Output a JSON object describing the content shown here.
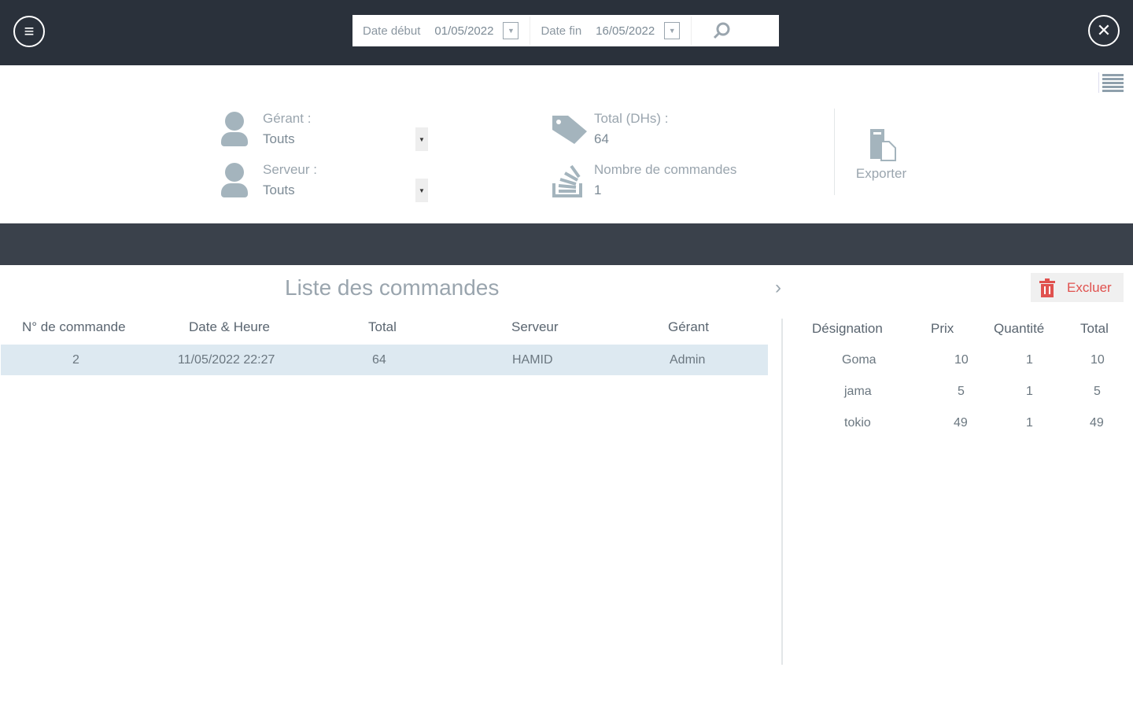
{
  "header": {
    "date_start_label": "Date début",
    "date_start": "01/05/2022",
    "date_end_label": "Date fin",
    "date_end": "16/05/2022"
  },
  "filters": {
    "gerant_label": "Gérant :",
    "gerant_value": "Touts",
    "serveur_label": "Serveur :",
    "serveur_value": "Touts"
  },
  "stats": {
    "total_label": "Total (DHs) :",
    "total_value": "64",
    "count_label": "Nombre de commandes",
    "count_value": "1"
  },
  "export_label": "Exporter",
  "orders": {
    "title": "Liste des commandes",
    "columns": [
      "N° de commande",
      "Date & Heure",
      "Total",
      "Serveur",
      "Gérant"
    ],
    "rows": [
      [
        "2",
        "11/05/2022 22:27",
        "64",
        "HAMID",
        "Admin"
      ]
    ]
  },
  "details": {
    "exclude_label": "Excluer",
    "columns": [
      "Désignation",
      "Prix",
      "Quantité",
      "Total"
    ],
    "rows": [
      [
        "Goma",
        "10",
        "1",
        "10"
      ],
      [
        "jama",
        "5",
        "1",
        "5"
      ],
      [
        "tokio",
        "49",
        "1",
        "49"
      ]
    ]
  },
  "colors": {
    "topbar": "#2a313b",
    "accent_red": "#e0524f",
    "selected_row": "#dde9f1"
  }
}
